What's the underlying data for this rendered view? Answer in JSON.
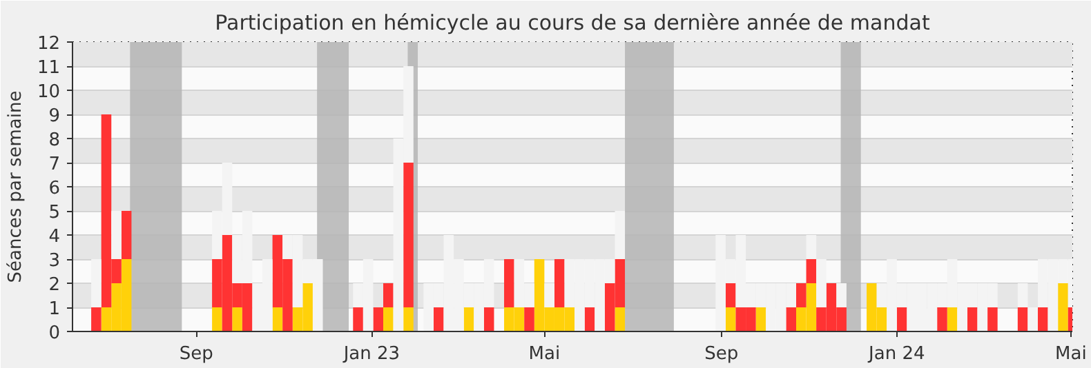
{
  "chart_data": {
    "type": "bar",
    "stacked": true,
    "title": "Participation en hémicycle au cours de sa dernière année de mandat",
    "ylabel": "Séances par semaine",
    "x": [
      "2022-06-20",
      "2022-06-27",
      "2022-07-04",
      "2022-07-11",
      "2022-07-18",
      "2022-07-25",
      "2022-08-01",
      "2022-08-08",
      "2022-08-15",
      "2022-08-22",
      "2022-08-29",
      "2022-09-05",
      "2022-09-12",
      "2022-09-19",
      "2022-09-26",
      "2022-10-03",
      "2022-10-10",
      "2022-10-17",
      "2022-10-24",
      "2022-10-31",
      "2022-11-07",
      "2022-11-14",
      "2022-11-21",
      "2022-11-28",
      "2022-12-05",
      "2022-12-12",
      "2022-12-19",
      "2022-12-26",
      "2023-01-02",
      "2023-01-09",
      "2023-01-16",
      "2023-01-23",
      "2023-01-30",
      "2023-02-06",
      "2023-02-13",
      "2023-02-20",
      "2023-02-27",
      "2023-03-06",
      "2023-03-13",
      "2023-03-20",
      "2023-03-27",
      "2023-04-03",
      "2023-04-10",
      "2023-04-17",
      "2023-04-24",
      "2023-05-01",
      "2023-05-08",
      "2023-05-15",
      "2023-05-22",
      "2023-05-29",
      "2023-06-05",
      "2023-06-12",
      "2023-06-19",
      "2023-06-26",
      "2023-07-03",
      "2023-07-10",
      "2023-07-17",
      "2023-07-24",
      "2023-07-31",
      "2023-08-07",
      "2023-08-14",
      "2023-08-21",
      "2023-08-28",
      "2023-09-04",
      "2023-09-11",
      "2023-09-18",
      "2023-09-25",
      "2023-10-02",
      "2023-10-09",
      "2023-10-16",
      "2023-10-23",
      "2023-10-30",
      "2023-11-06",
      "2023-11-13",
      "2023-11-20",
      "2023-11-27",
      "2023-12-04",
      "2023-12-11",
      "2023-12-18",
      "2023-12-25",
      "2024-01-01",
      "2024-01-08",
      "2024-01-15",
      "2024-01-22",
      "2024-01-29",
      "2024-02-05",
      "2024-02-12",
      "2024-02-19",
      "2024-02-26",
      "2024-03-04",
      "2024-03-11",
      "2024-03-18",
      "2024-03-25",
      "2024-04-01",
      "2024-04-08",
      "2024-04-15",
      "2024-04-22",
      "2024-04-29"
    ],
    "series": [
      {
        "color": "#ffd10a",
        "values": [
          0,
          1,
          2,
          3,
          0,
          0,
          0,
          0,
          0,
          0,
          0,
          0,
          1,
          0,
          1,
          0,
          0,
          0,
          1,
          0,
          1,
          2,
          0,
          0,
          0,
          0,
          0,
          0,
          0,
          1,
          0,
          1,
          0,
          0,
          0,
          0,
          0,
          1,
          0,
          0,
          0,
          1,
          1,
          0,
          3,
          1,
          1,
          1,
          0,
          0,
          0,
          0,
          1,
          0,
          0,
          0,
          0,
          0,
          0,
          0,
          0,
          0,
          0,
          1,
          0,
          0,
          1,
          0,
          0,
          0,
          1,
          2,
          0,
          0,
          0,
          0,
          0,
          2,
          1,
          0,
          0,
          0,
          0,
          0,
          0,
          1,
          0,
          0,
          0,
          0,
          0,
          0,
          0,
          0,
          0,
          0,
          2,
          0
        ]
      },
      {
        "color": "#ff3333",
        "values": [
          1,
          8,
          1,
          2,
          0,
          0,
          0,
          0,
          0,
          0,
          0,
          0,
          2,
          4,
          1,
          2,
          0,
          0,
          3,
          3,
          0,
          0,
          0,
          0,
          0,
          0,
          1,
          0,
          1,
          1,
          0,
          6,
          0,
          0,
          1,
          0,
          0,
          0,
          0,
          1,
          0,
          2,
          0,
          1,
          0,
          0,
          2,
          0,
          0,
          1,
          0,
          2,
          2,
          0,
          0,
          0,
          0,
          0,
          0,
          0,
          0,
          0,
          0,
          1,
          1,
          1,
          0,
          0,
          0,
          1,
          1,
          1,
          1,
          2,
          1,
          0,
          0,
          0,
          0,
          0,
          1,
          0,
          0,
          0,
          1,
          0,
          0,
          1,
          0,
          1,
          0,
          0,
          1,
          0,
          1,
          0,
          0,
          1
        ]
      },
      {
        "color": "#f4f4f4",
        "values": [
          2,
          0,
          2,
          0,
          0,
          0,
          0,
          0,
          0,
          0,
          0,
          0,
          2,
          3,
          2,
          3,
          2,
          3,
          0,
          1,
          3,
          1,
          3,
          0,
          0,
          0,
          1,
          3,
          0,
          0,
          8,
          4,
          0,
          2,
          1,
          4,
          3,
          1,
          2,
          2,
          0,
          0,
          2,
          1,
          0,
          1,
          0,
          2,
          3,
          2,
          3,
          1,
          2,
          0,
          0,
          0,
          0,
          0,
          0,
          0,
          0,
          0,
          4,
          1,
          3,
          1,
          1,
          2,
          2,
          1,
          0,
          1,
          2,
          0,
          1,
          0,
          0,
          0,
          1,
          3,
          1,
          2,
          2,
          2,
          1,
          2,
          2,
          1,
          2,
          1,
          0,
          0,
          1,
          1,
          2,
          3,
          1,
          2
        ]
      }
    ],
    "xlim": [
      "2022-06-07",
      "2024-05-02"
    ],
    "xticks": [
      {
        "value": "2022-09-01",
        "label": "Sep"
      },
      {
        "value": "2023-01-01",
        "label": "Jan 23"
      },
      {
        "value": "2023-05-01",
        "label": "Mai"
      },
      {
        "value": "2023-09-01",
        "label": "Sep"
      },
      {
        "value": "2024-01-01",
        "label": "Jan 24"
      },
      {
        "value": "2024-05-01",
        "label": "Mai"
      }
    ],
    "ylim": [
      0,
      12
    ],
    "yticks": [
      0,
      1,
      2,
      3,
      4,
      5,
      6,
      7,
      8,
      9,
      10,
      11,
      12
    ],
    "grid": "y",
    "bands": [
      {
        "axis": "x",
        "from": "2022-07-17",
        "to": "2022-08-22",
        "color": "#b4b4b4"
      },
      {
        "axis": "x",
        "from": "2022-11-24",
        "to": "2022-12-16",
        "color": "#b4b4b4"
      },
      {
        "axis": "x",
        "from": "2023-01-26",
        "to": "2023-02-02",
        "color": "#b4b4b4"
      },
      {
        "axis": "x",
        "from": "2023-06-26",
        "to": "2023-07-30",
        "color": "#b4b4b4"
      },
      {
        "axis": "x",
        "from": "2023-11-23",
        "to": "2023-12-07",
        "color": "#b4b4b4"
      }
    ]
  }
}
